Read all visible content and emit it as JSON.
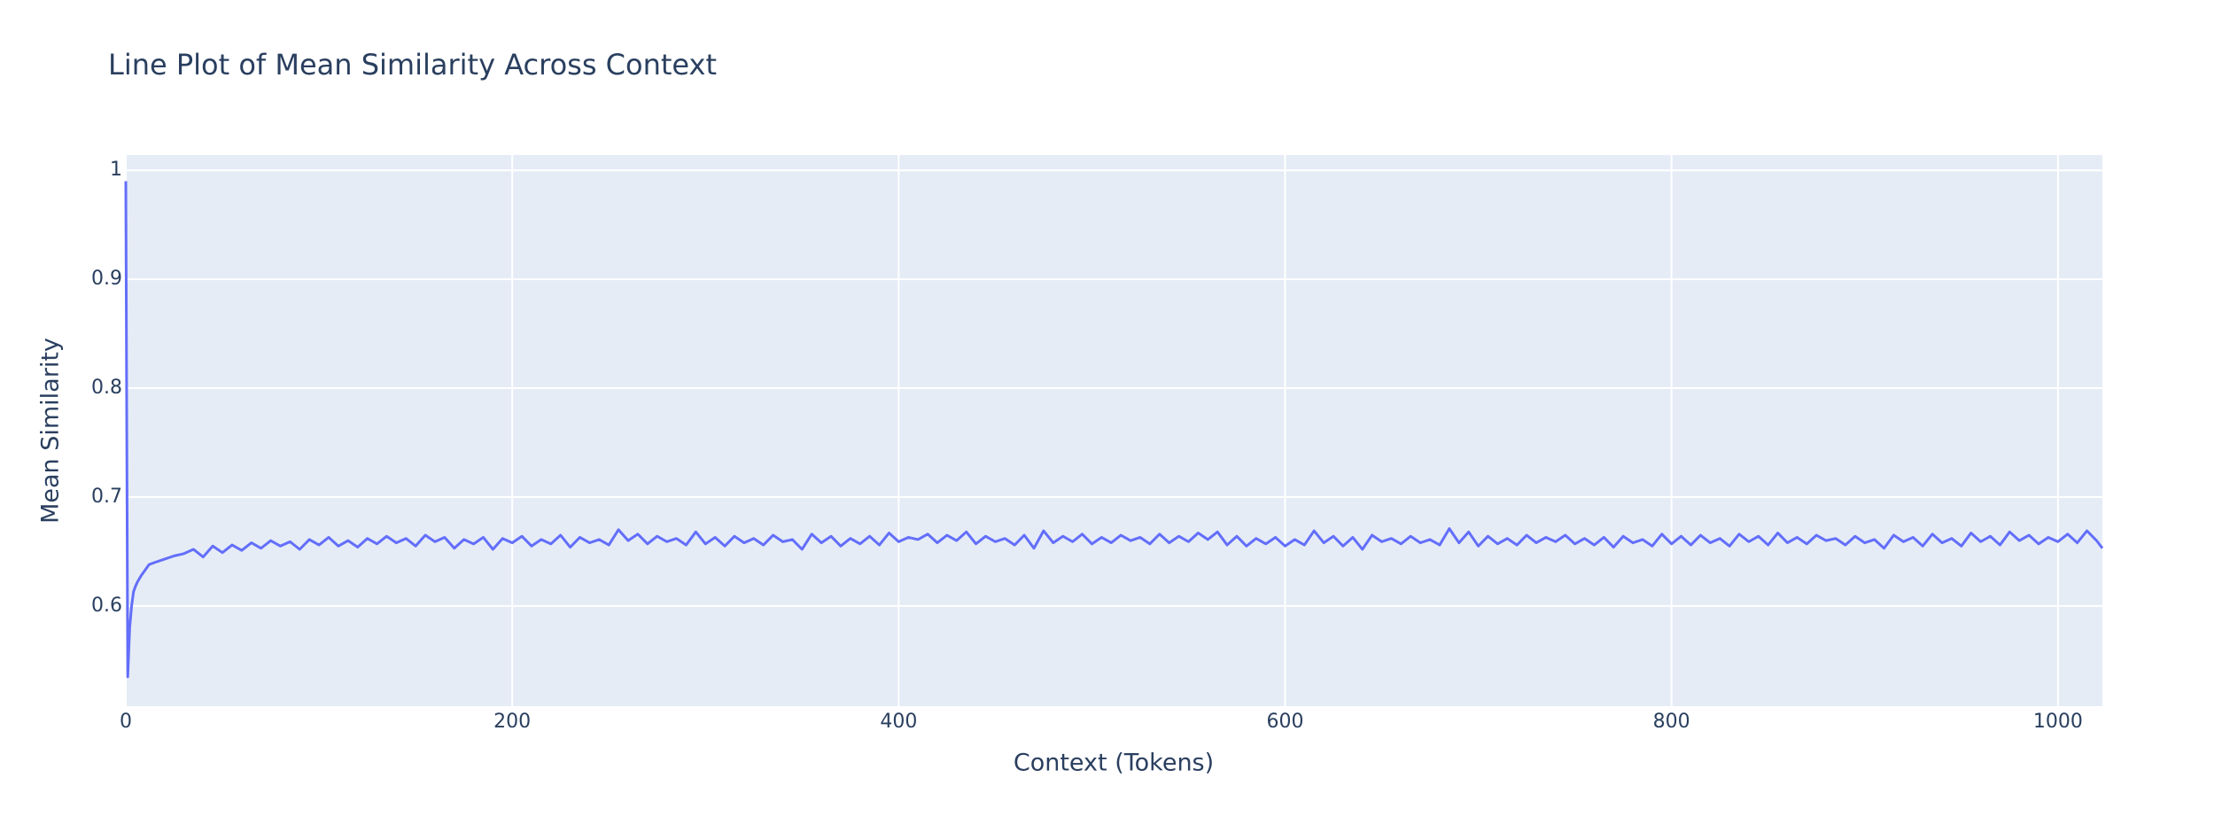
{
  "chart_data": {
    "type": "line",
    "title": "Line Plot of Mean Similarity Across Context",
    "x_label": "Context (Tokens)",
    "y_label": "Mean Similarity",
    "xlim": [
      0,
      1023
    ],
    "ylim": [
      0.508,
      1.014
    ],
    "xticks": [
      0,
      200,
      400,
      600,
      800,
      1000
    ],
    "yticks": [
      0.6,
      0.7,
      0.8,
      0.9,
      1
    ],
    "grid": true,
    "series": [
      {
        "name": "Mean Similarity",
        "color": "#636efa",
        "x": [
          0,
          1,
          2,
          3,
          4,
          5,
          6,
          8,
          10,
          12,
          15,
          20,
          25,
          30,
          35,
          40,
          45,
          50,
          55,
          60,
          65,
          70,
          75,
          80,
          85,
          90,
          95,
          100,
          105,
          110,
          115,
          120,
          125,
          130,
          135,
          140,
          145,
          150,
          155,
          160,
          165,
          170,
          175,
          180,
          185,
          190,
          195,
          200,
          205,
          210,
          215,
          220,
          225,
          230,
          235,
          240,
          245,
          250,
          255,
          260,
          265,
          270,
          275,
          280,
          285,
          290,
          295,
          300,
          305,
          310,
          315,
          320,
          325,
          330,
          335,
          340,
          345,
          350,
          355,
          360,
          365,
          370,
          375,
          380,
          385,
          390,
          395,
          400,
          405,
          410,
          415,
          420,
          425,
          430,
          435,
          440,
          445,
          450,
          455,
          460,
          465,
          470,
          475,
          480,
          485,
          490,
          495,
          500,
          505,
          510,
          515,
          520,
          525,
          530,
          535,
          540,
          545,
          550,
          555,
          560,
          565,
          570,
          575,
          580,
          585,
          590,
          595,
          600,
          605,
          610,
          615,
          620,
          625,
          630,
          635,
          640,
          645,
          650,
          655,
          660,
          665,
          670,
          675,
          680,
          685,
          690,
          695,
          700,
          705,
          710,
          715,
          720,
          725,
          730,
          735,
          740,
          745,
          750,
          755,
          760,
          765,
          770,
          775,
          780,
          785,
          790,
          795,
          800,
          805,
          810,
          815,
          820,
          825,
          830,
          835,
          840,
          845,
          850,
          855,
          860,
          865,
          870,
          875,
          880,
          885,
          890,
          895,
          900,
          905,
          910,
          915,
          920,
          925,
          930,
          935,
          940,
          945,
          950,
          955,
          960,
          965,
          970,
          975,
          980,
          985,
          990,
          995,
          1000,
          1005,
          1010,
          1015,
          1020,
          1023
        ],
        "values": [
          0.99,
          0.535,
          0.58,
          0.6,
          0.613,
          0.618,
          0.622,
          0.628,
          0.633,
          0.638,
          0.64,
          0.643,
          0.646,
          0.648,
          0.652,
          0.645,
          0.655,
          0.649,
          0.656,
          0.651,
          0.658,
          0.653,
          0.66,
          0.655,
          0.659,
          0.652,
          0.661,
          0.656,
          0.663,
          0.655,
          0.66,
          0.654,
          0.662,
          0.657,
          0.664,
          0.658,
          0.662,
          0.655,
          0.665,
          0.659,
          0.663,
          0.653,
          0.661,
          0.657,
          0.663,
          0.652,
          0.662,
          0.658,
          0.664,
          0.655,
          0.661,
          0.657,
          0.665,
          0.654,
          0.663,
          0.658,
          0.661,
          0.656,
          0.67,
          0.66,
          0.666,
          0.657,
          0.664,
          0.659,
          0.662,
          0.656,
          0.668,
          0.657,
          0.663,
          0.655,
          0.664,
          0.658,
          0.662,
          0.656,
          0.665,
          0.659,
          0.661,
          0.652,
          0.666,
          0.658,
          0.664,
          0.655,
          0.662,
          0.657,
          0.664,
          0.656,
          0.667,
          0.659,
          0.663,
          0.661,
          0.666,
          0.658,
          0.665,
          0.66,
          0.668,
          0.657,
          0.664,
          0.659,
          0.662,
          0.656,
          0.665,
          0.653,
          0.669,
          0.658,
          0.664,
          0.659,
          0.666,
          0.657,
          0.663,
          0.658,
          0.665,
          0.66,
          0.663,
          0.657,
          0.666,
          0.658,
          0.664,
          0.659,
          0.667,
          0.661,
          0.668,
          0.656,
          0.664,
          0.655,
          0.662,
          0.657,
          0.663,
          0.655,
          0.661,
          0.656,
          0.669,
          0.658,
          0.664,
          0.655,
          0.663,
          0.652,
          0.665,
          0.659,
          0.662,
          0.657,
          0.664,
          0.658,
          0.661,
          0.656,
          0.671,
          0.658,
          0.668,
          0.655,
          0.664,
          0.657,
          0.662,
          0.656,
          0.665,
          0.658,
          0.663,
          0.659,
          0.665,
          0.657,
          0.662,
          0.656,
          0.663,
          0.654,
          0.664,
          0.658,
          0.661,
          0.655,
          0.666,
          0.657,
          0.664,
          0.656,
          0.665,
          0.658,
          0.662,
          0.655,
          0.666,
          0.659,
          0.664,
          0.656,
          0.667,
          0.658,
          0.663,
          0.657,
          0.665,
          0.66,
          0.662,
          0.656,
          0.664,
          0.658,
          0.661,
          0.653,
          0.665,
          0.659,
          0.663,
          0.655,
          0.666,
          0.658,
          0.662,
          0.655,
          0.667,
          0.659,
          0.664,
          0.656,
          0.668,
          0.66,
          0.665,
          0.657,
          0.663,
          0.659,
          0.666,
          0.658,
          0.669,
          0.66,
          0.653
        ]
      }
    ]
  }
}
